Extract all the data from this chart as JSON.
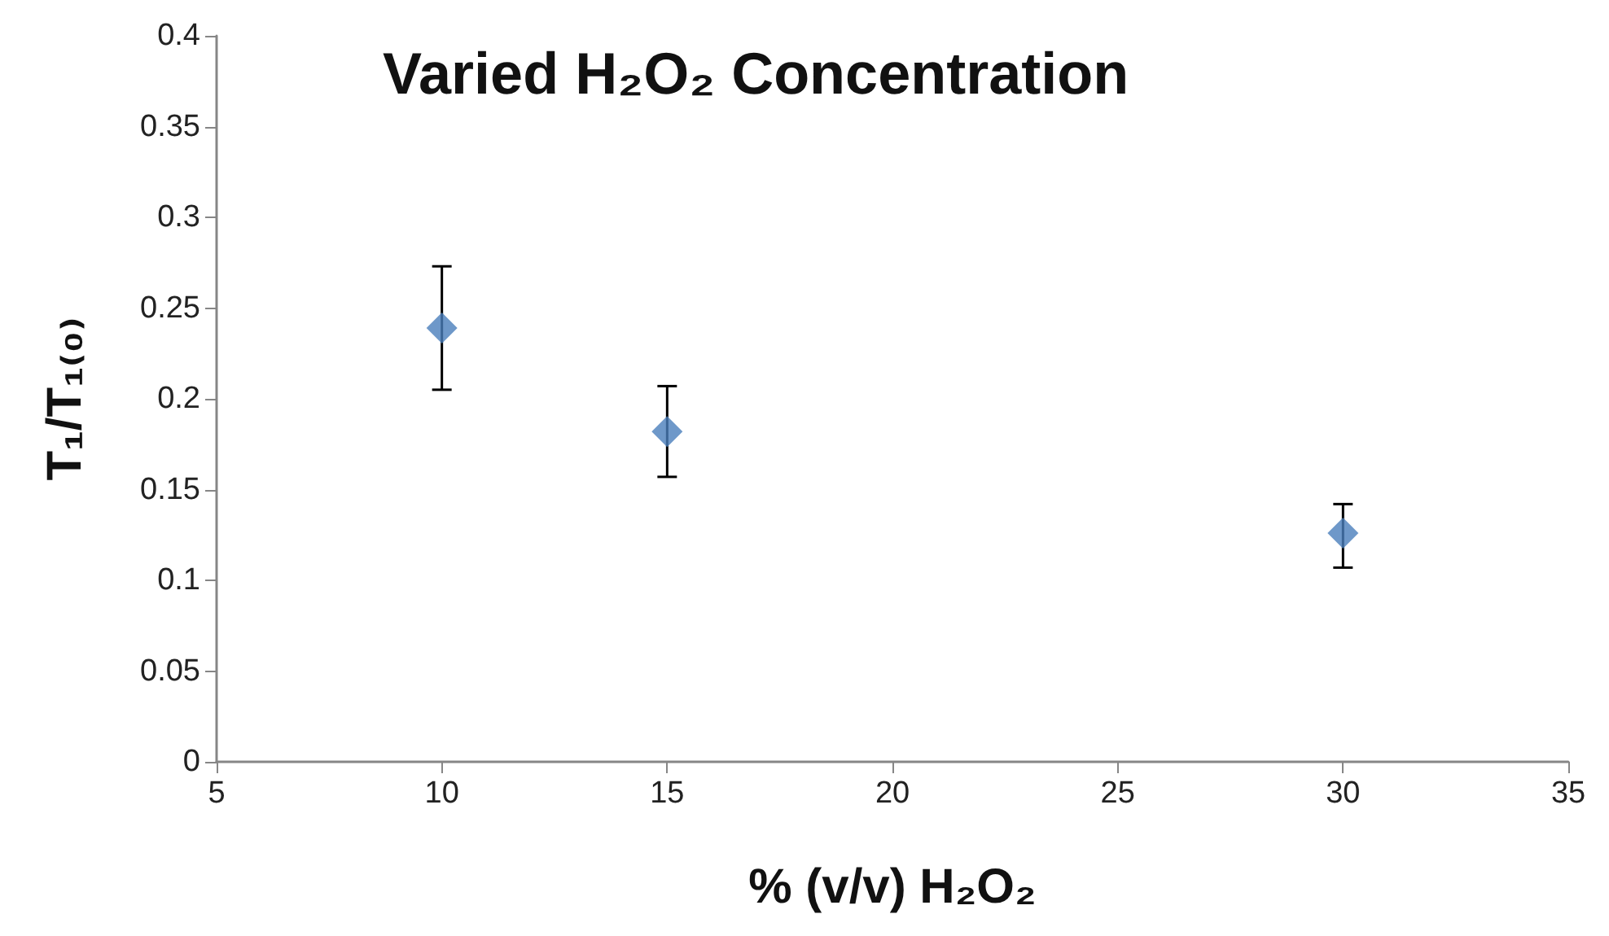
{
  "chart_data": {
    "type": "scatter",
    "title": "Varied H₂O₂ Concentration",
    "xlabel": "% (v/v) H₂O₂",
    "ylabel": "T₁/T₁₍₀₎",
    "x": [
      10,
      15,
      30
    ],
    "series": [
      {
        "color": "#4a7ebb",
        "values": [
          0.239,
          0.182,
          0.126
        ],
        "errors": [
          [
            0.205,
            0.273
          ],
          [
            0.157,
            0.207
          ],
          [
            0.107,
            0.142
          ]
        ]
      }
    ],
    "xlim": [
      5,
      35
    ],
    "xticks": [
      5,
      10,
      15,
      20,
      25,
      30,
      35
    ],
    "ylim": [
      0,
      0.4
    ],
    "yticks": [
      0,
      0.05,
      0.1,
      0.15,
      0.2,
      0.25,
      0.3,
      0.35,
      0.4
    ],
    "grid": false,
    "marker": "diamond"
  }
}
